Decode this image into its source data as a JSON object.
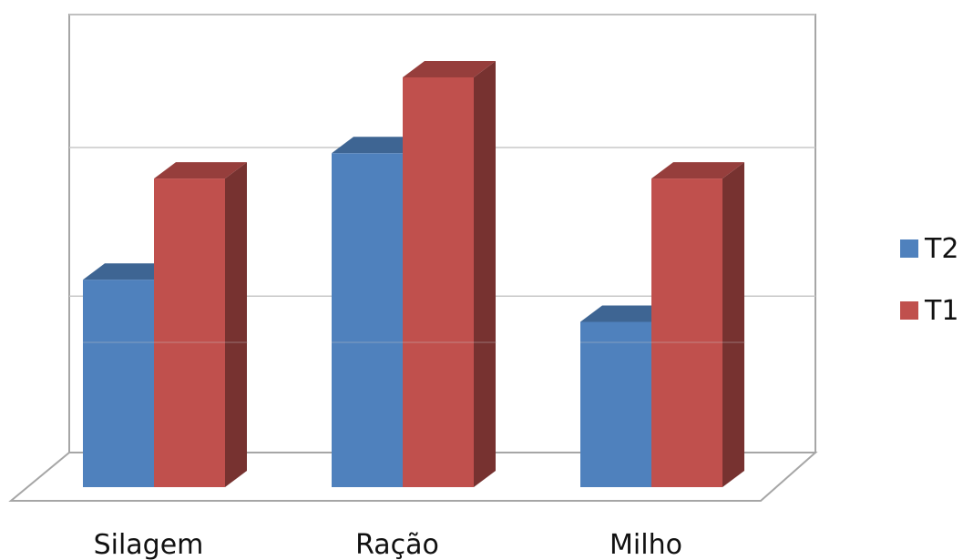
{
  "chart_data": {
    "type": "bar",
    "style": "3d-clustered-column",
    "categories": [
      "Silagem",
      "Ração",
      "Milho"
    ],
    "series": [
      {
        "name": "T2",
        "color": "#4f81bd",
        "values": [
          2.46,
          3.96,
          1.96
        ]
      },
      {
        "name": "T1",
        "color": "#c0504d",
        "values": [
          3.66,
          4.86,
          3.66
        ]
      }
    ],
    "ylim": [
      0,
      5.6
    ],
    "grid": true,
    "gridlines": [
      2.0,
      3.9,
      5.6
    ],
    "legend": {
      "position": "right",
      "order": [
        "T2",
        "T1"
      ]
    },
    "title": "",
    "xlabel": "",
    "ylabel": ""
  }
}
